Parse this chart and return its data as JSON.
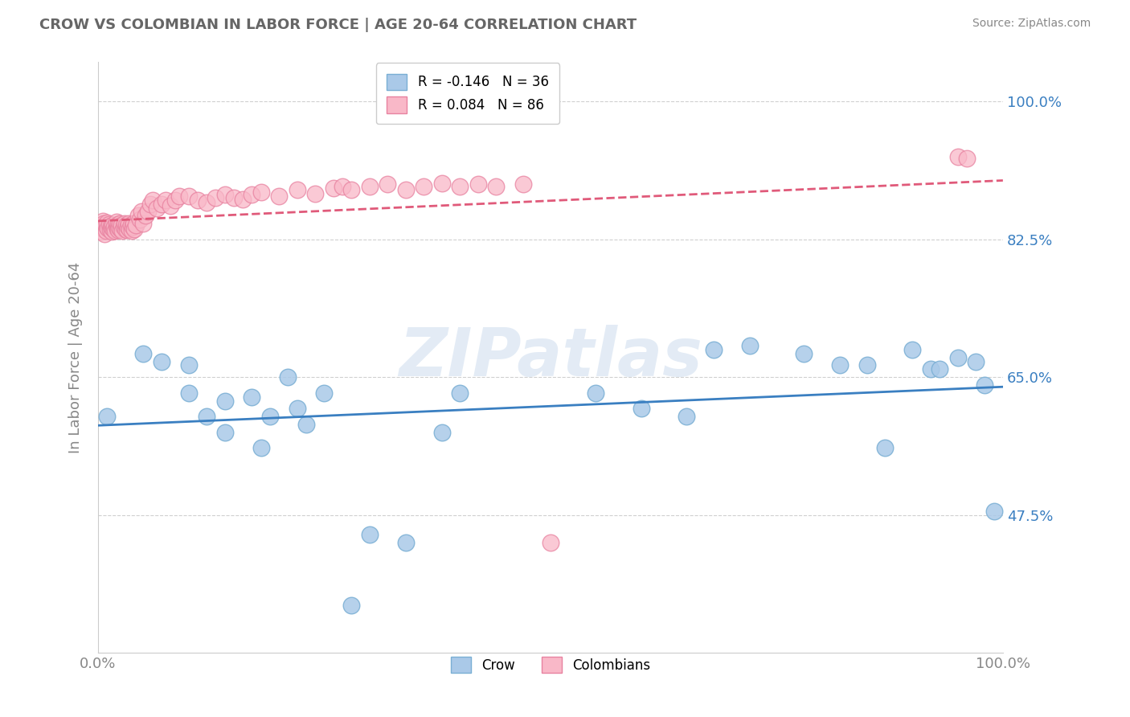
{
  "title": "CROW VS COLOMBIAN IN LABOR FORCE | AGE 20-64 CORRELATION CHART",
  "source": "Source: ZipAtlas.com",
  "ylabel": "In Labor Force | Age 20-64",
  "xlim": [
    0.0,
    1.0
  ],
  "ylim": [
    0.3,
    1.05
  ],
  "yticks": [
    0.475,
    0.65,
    0.825,
    1.0
  ],
  "ytick_labels": [
    "47.5%",
    "65.0%",
    "82.5%",
    "100.0%"
  ],
  "crow_color": "#aac9e8",
  "crow_edge_color": "#7aafd4",
  "colombian_color": "#f9b8c8",
  "colombian_edge_color": "#e882a0",
  "crow_line_color": "#3a7fc1",
  "colombian_line_color": "#e05a7a",
  "legend_crow_label": "R = -0.146   N = 36",
  "legend_colombian_label": "R = 0.084   N = 86",
  "watermark": "ZIPatlas",
  "crow_scatter_x": [
    0.01,
    0.05,
    0.07,
    0.1,
    0.1,
    0.12,
    0.14,
    0.14,
    0.17,
    0.18,
    0.19,
    0.21,
    0.22,
    0.23,
    0.25,
    0.28,
    0.3,
    0.34,
    0.38,
    0.4,
    0.55,
    0.6,
    0.65,
    0.68,
    0.72,
    0.78,
    0.82,
    0.85,
    0.87,
    0.9,
    0.92,
    0.93,
    0.95,
    0.97,
    0.98,
    0.99
  ],
  "crow_scatter_y": [
    0.6,
    0.68,
    0.67,
    0.665,
    0.63,
    0.6,
    0.62,
    0.58,
    0.625,
    0.56,
    0.6,
    0.65,
    0.61,
    0.59,
    0.63,
    0.36,
    0.45,
    0.44,
    0.58,
    0.63,
    0.63,
    0.61,
    0.6,
    0.685,
    0.69,
    0.68,
    0.665,
    0.665,
    0.56,
    0.685,
    0.66,
    0.66,
    0.675,
    0.67,
    0.64,
    0.48
  ],
  "colombian_scatter_x": [
    0.002,
    0.003,
    0.004,
    0.005,
    0.006,
    0.006,
    0.007,
    0.008,
    0.009,
    0.01,
    0.01,
    0.011,
    0.012,
    0.013,
    0.014,
    0.015,
    0.015,
    0.016,
    0.017,
    0.018,
    0.019,
    0.02,
    0.02,
    0.021,
    0.022,
    0.022,
    0.023,
    0.024,
    0.025,
    0.026,
    0.027,
    0.028,
    0.029,
    0.03,
    0.031,
    0.032,
    0.033,
    0.034,
    0.035,
    0.036,
    0.037,
    0.038,
    0.039,
    0.04,
    0.042,
    0.044,
    0.046,
    0.048,
    0.05,
    0.052,
    0.055,
    0.058,
    0.06,
    0.065,
    0.07,
    0.075,
    0.08,
    0.085,
    0.09,
    0.1,
    0.11,
    0.12,
    0.13,
    0.14,
    0.15,
    0.16,
    0.17,
    0.18,
    0.2,
    0.22,
    0.24,
    0.26,
    0.27,
    0.28,
    0.3,
    0.32,
    0.34,
    0.36,
    0.38,
    0.4,
    0.42,
    0.44,
    0.47,
    0.5,
    0.95,
    0.96
  ],
  "colombian_scatter_y": [
    0.84,
    0.835,
    0.842,
    0.848,
    0.838,
    0.845,
    0.832,
    0.843,
    0.836,
    0.841,
    0.846,
    0.839,
    0.844,
    0.837,
    0.842,
    0.835,
    0.84,
    0.843,
    0.838,
    0.841,
    0.836,
    0.842,
    0.847,
    0.839,
    0.844,
    0.837,
    0.84,
    0.845,
    0.838,
    0.843,
    0.836,
    0.841,
    0.845,
    0.838,
    0.843,
    0.837,
    0.841,
    0.845,
    0.838,
    0.843,
    0.836,
    0.841,
    0.845,
    0.838,
    0.843,
    0.855,
    0.85,
    0.86,
    0.845,
    0.855,
    0.86,
    0.87,
    0.875,
    0.865,
    0.87,
    0.875,
    0.868,
    0.875,
    0.88,
    0.88,
    0.875,
    0.872,
    0.878,
    0.882,
    0.878,
    0.876,
    0.882,
    0.885,
    0.88,
    0.888,
    0.883,
    0.89,
    0.892,
    0.888,
    0.892,
    0.895,
    0.888,
    0.892,
    0.896,
    0.892,
    0.895,
    0.892,
    0.895,
    0.44,
    0.93,
    0.928
  ]
}
